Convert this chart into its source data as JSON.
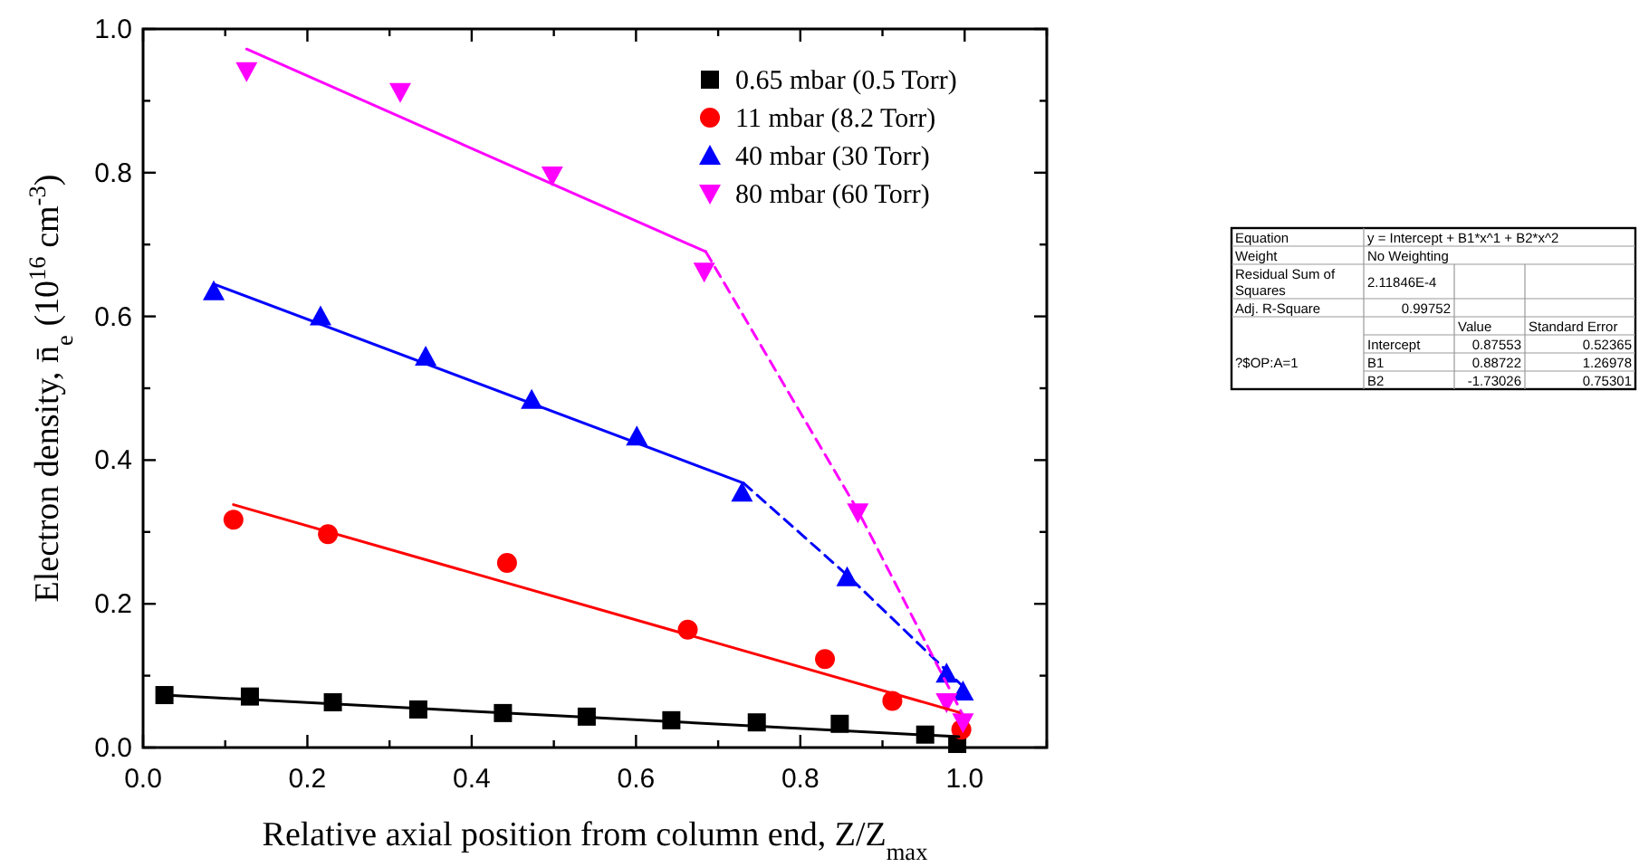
{
  "chart_data": [
    {
      "type": "scatter",
      "xlabel": "Relative axial position from column end, Z/Z$_{max}$",
      "ylabel": "Electron density, n̄$_{e}$ (10$^{16}$ cm$^{-3}$)",
      "xlim": [
        0,
        1.1
      ],
      "ylim": [
        0,
        1.0
      ],
      "xticks": [
        {
          "value": 0,
          "label": "0.0"
        },
        {
          "value": 0.1,
          "label": null
        },
        {
          "value": 0.2,
          "label": "0.2"
        },
        {
          "value": 0.3,
          "label": null
        },
        {
          "value": 0.4,
          "label": "0.4"
        },
        {
          "value": 0.5,
          "label": null
        },
        {
          "value": 0.6,
          "label": "0.6"
        },
        {
          "value": 0.7,
          "label": null
        },
        {
          "value": 0.8,
          "label": "0.8"
        },
        {
          "value": 0.9,
          "label": null
        },
        {
          "value": 1.0,
          "label": "1.0"
        },
        {
          "value": 1.1,
          "label": null
        }
      ],
      "yticks": [
        {
          "value": 0,
          "label": "0.0"
        },
        {
          "value": 0.1,
          "label": null
        },
        {
          "value": 0.2,
          "label": "0.2"
        },
        {
          "value": 0.3,
          "label": null
        },
        {
          "value": 0.4,
          "label": "0.4"
        },
        {
          "value": 0.5,
          "label": null
        },
        {
          "value": 0.6,
          "label": "0.6"
        },
        {
          "value": 0.7,
          "label": null
        },
        {
          "value": 0.8,
          "label": "0.8"
        },
        {
          "value": 0.9,
          "label": null
        },
        {
          "value": 1.0,
          "label": "1.0"
        }
      ],
      "grid": false,
      "legend": "top right",
      "series": [
        {
          "name": "0.65 mbar (0.5 Torr)",
          "color": "#000000",
          "marker": "square",
          "x": [
            0.026,
            0.13,
            0.231,
            0.335,
            0.438,
            0.54,
            0.643,
            0.747,
            0.848,
            0.952,
            0.991
          ],
          "values": [
            0.073,
            0.071,
            0.063,
            0.053,
            0.048,
            0.043,
            0.038,
            0.035,
            0.033,
            0.018,
            0.005
          ]
        },
        {
          "name": "11 mbar (8.2 Torr)",
          "color": "#ff0000",
          "marker": "circle",
          "x": [
            0.11,
            0.225,
            0.443,
            0.663,
            0.83,
            0.912,
            0.996
          ],
          "values": [
            0.317,
            0.297,
            0.257,
            0.164,
            0.123,
            0.065,
            0.025
          ]
        },
        {
          "name": "40 mbar (30 Torr)",
          "color": "#0000ff",
          "marker": "triangle",
          "x": [
            0.086,
            0.216,
            0.344,
            0.473,
            0.601,
            0.729,
            0.857,
            0.978,
            0.998
          ],
          "values": [
            0.635,
            0.6,
            0.544,
            0.484,
            0.433,
            0.355,
            0.237,
            0.103,
            0.078
          ]
        },
        {
          "name": "80 mbar (60 Torr)",
          "color": "#ff00ff",
          "marker": "triangle-down",
          "x": [
            0.126,
            0.313,
            0.498,
            0.683,
            0.87,
            0.978,
            0.998
          ],
          "values": [
            0.941,
            0.912,
            0.796,
            0.662,
            0.327,
            0.063,
            0.035
          ]
        },
        {
          "type": "line",
          "color": "#000000",
          "marker": "none",
          "line_style": "solid",
          "x": [
            0.026,
            0.993
          ],
          "values": [
            0.073,
            0.015
          ]
        },
        {
          "type": "line",
          "color": "#ff0000",
          "marker": "none",
          "line_style": "solid",
          "x": [
            0.11,
            0.996
          ],
          "values": [
            0.338,
            0.048
          ]
        },
        {
          "type": "line",
          "color": "#0000ff",
          "marker": "none",
          "line_style": "solid",
          "x": [
            0.086,
            0.731
          ],
          "values": [
            0.645,
            0.368
          ]
        },
        {
          "type": "line",
          "color": "#0000ff",
          "marker": "none",
          "line_style": "dashed",
          "x": [
            0.731,
            0.857,
            0.998
          ],
          "values": [
            0.368,
            0.24,
            0.085
          ]
        },
        {
          "type": "line",
          "color": "#ff00ff",
          "marker": "none",
          "line_style": "solid",
          "x": [
            0.126,
            0.685
          ],
          "values": [
            0.972,
            0.69
          ]
        },
        {
          "type": "line",
          "color": "#ff00ff",
          "marker": "none",
          "line_style": "dashed",
          "x": [
            0.685,
            0.87,
            0.998
          ],
          "values": [
            0.69,
            0.33,
            0.045
          ]
        }
      ]
    },
    {
      "type": "other",
      "annotations": [
        "Equation",
        "y = Intercept + B1*x^1 + B2*x^2",
        "Weight",
        "No Weighting",
        "Residual Sum of Squares",
        "2.11846E-4",
        "Adj. R-Square",
        "0.99752",
        "Value",
        "Standard Error",
        "?$OP:A=1",
        "Intercept",
        "0.87553",
        "0.52365",
        "B1",
        "0.88722",
        "1.26978",
        "B2",
        "-1.73026",
        "0.75301"
      ]
    }
  ]
}
